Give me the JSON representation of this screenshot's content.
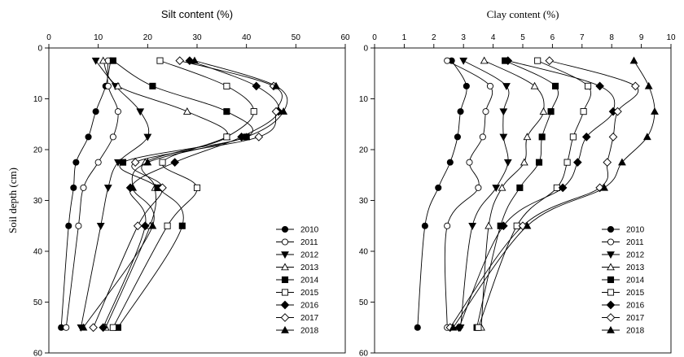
{
  "chart_data": [
    {
      "type": "line",
      "title": "Silt content (%)",
      "title_font": "sans",
      "xlabel": "",
      "ylabel": "Soil depth (cm)",
      "xlim": [
        0,
        60
      ],
      "ylim": [
        0,
        60
      ],
      "y_inverted": true,
      "x_axis_position": "top",
      "x_ticks": [
        0,
        10,
        20,
        30,
        40,
        50,
        60
      ],
      "y_ticks": [
        0,
        10,
        20,
        30,
        40,
        50,
        60
      ],
      "grid": false,
      "legend_position": "bottom-right",
      "depths": [
        2.5,
        7.5,
        12.5,
        17.5,
        22.5,
        27.5,
        35,
        55
      ],
      "series": [
        {
          "name": "2010",
          "marker": "circle-filled",
          "values": [
            12.5,
            11.5,
            9.5,
            8,
            5.5,
            5,
            4,
            2.5
          ]
        },
        {
          "name": "2011",
          "marker": "circle-open",
          "values": [
            12,
            12,
            14,
            13,
            10,
            7,
            6,
            3.5
          ]
        },
        {
          "name": "2012",
          "marker": "triangle-down-filled",
          "values": [
            9.5,
            13.5,
            18.5,
            20,
            14,
            12,
            10.5,
            6.5
          ]
        },
        {
          "name": "2013",
          "marker": "triangle-up-open",
          "values": [
            11,
            14,
            28,
            36,
            19.5,
            21.5,
            20.5,
            11.5
          ]
        },
        {
          "name": "2014",
          "marker": "square-filled",
          "values": [
            13,
            21,
            36,
            40,
            15,
            22,
            27,
            14
          ]
        },
        {
          "name": "2015",
          "marker": "square-open",
          "values": [
            22.5,
            36,
            41.5,
            36,
            23,
            30,
            24,
            13
          ]
        },
        {
          "name": "2016",
          "marker": "diamond-filled",
          "values": [
            28.5,
            42,
            46.5,
            39,
            25.5,
            16.5,
            19.5,
            11
          ]
        },
        {
          "name": "2017",
          "marker": "diamond-open",
          "values": [
            26.5,
            45.5,
            46,
            42.5,
            17.5,
            23,
            18,
            9
          ]
        },
        {
          "name": "2018",
          "marker": "triangle-up-filled",
          "values": [
            29.5,
            46,
            47.5,
            40,
            20,
            17,
            21,
            7
          ]
        }
      ]
    },
    {
      "type": "line",
      "title": "Clay content (%)",
      "title_font": "serif",
      "xlabel": "",
      "ylabel": "",
      "xlim": [
        0,
        10
      ],
      "ylim": [
        0,
        60
      ],
      "y_inverted": true,
      "x_axis_position": "top",
      "x_ticks": [
        0,
        1,
        2,
        3,
        4,
        5,
        6,
        7,
        8,
        9,
        10
      ],
      "y_ticks": [
        0,
        10,
        20,
        30,
        40,
        50,
        60
      ],
      "grid": false,
      "legend_position": "bottom-right",
      "depths": [
        2.5,
        7.5,
        12.5,
        17.5,
        22.5,
        27.5,
        35,
        55
      ],
      "series": [
        {
          "name": "2010",
          "marker": "circle-filled",
          "values": [
            2.6,
            3.1,
            2.9,
            2.8,
            2.55,
            2.15,
            1.7,
            1.45
          ]
        },
        {
          "name": "2011",
          "marker": "circle-open",
          "values": [
            2.45,
            3.9,
            3.75,
            3.65,
            3.2,
            3.5,
            2.45,
            2.45
          ]
        },
        {
          "name": "2012",
          "marker": "triangle-down-filled",
          "values": [
            3.0,
            4.45,
            4.35,
            4.35,
            4.5,
            4.1,
            3.3,
            2.9
          ]
        },
        {
          "name": "2013",
          "marker": "triangle-up-open",
          "values": [
            3.7,
            5.4,
            5.7,
            5.15,
            5.05,
            4.3,
            3.85,
            3.6
          ]
        },
        {
          "name": "2014",
          "marker": "square-filled",
          "values": [
            4.4,
            6.1,
            5.95,
            5.65,
            5.55,
            4.9,
            4.25,
            3.45
          ]
        },
        {
          "name": "2015",
          "marker": "square-open",
          "values": [
            5.5,
            7.2,
            7.05,
            6.7,
            6.5,
            6.15,
            4.8,
            3.5
          ]
        },
        {
          "name": "2016",
          "marker": "diamond-filled",
          "values": [
            4.5,
            7.6,
            8.05,
            7.15,
            6.85,
            6.35,
            4.35,
            2.85
          ]
        },
        {
          "name": "2017",
          "marker": "diamond-open",
          "values": [
            5.9,
            8.8,
            8.2,
            8.05,
            7.85,
            7.6,
            5.0,
            2.55
          ]
        },
        {
          "name": "2018",
          "marker": "triangle-up-filled",
          "values": [
            8.75,
            9.25,
            9.45,
            9.2,
            8.35,
            7.75,
            5.15,
            2.65
          ]
        }
      ]
    }
  ]
}
